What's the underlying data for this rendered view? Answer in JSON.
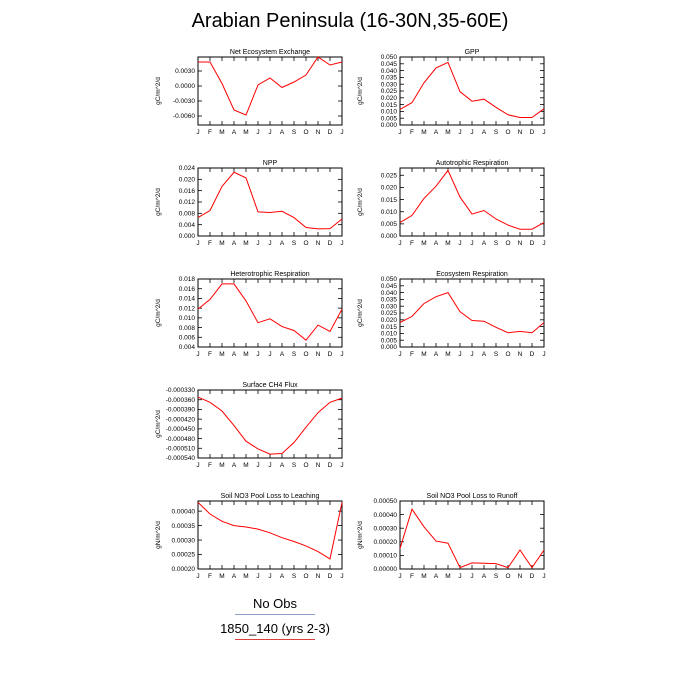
{
  "title": "Arabian Peninsula (16-30N,35-60E)",
  "legend": [
    {
      "label": "No Obs",
      "color": "#8fa0c8"
    },
    {
      "label": "1850_140 (yrs 2-3)",
      "color": "#e03c3c"
    }
  ],
  "series_color": "#ff0000",
  "chart_data": [
    {
      "type": "line",
      "title": "Net Ecosystem Exchange",
      "ylabel": "gC/m^2/d",
      "x": [
        "J",
        "F",
        "M",
        "A",
        "M",
        "J",
        "J",
        "A",
        "S",
        "O",
        "N",
        "D",
        "J"
      ],
      "ylim": [
        -0.0078,
        0.0058
      ],
      "yticks": [
        "0.0030",
        "0.0000",
        "-0.0030",
        "-0.0060"
      ],
      "ytick_values": [
        0.003,
        0.0,
        -0.003,
        -0.006
      ],
      "series": [
        {
          "values": [
            0.0048,
            0.0048,
            0.0005,
            -0.0048,
            -0.0058,
            0.0002,
            0.0016,
            -0.0003,
            0.0008,
            0.0022,
            0.0058,
            0.0042,
            0.0048
          ]
        }
      ]
    },
    {
      "type": "line",
      "title": "GPP",
      "ylabel": "gC/m^2/d",
      "x": [
        "J",
        "F",
        "M",
        "A",
        "M",
        "J",
        "J",
        "A",
        "S",
        "O",
        "N",
        "D",
        "J"
      ],
      "ylim": [
        0,
        0.05
      ],
      "yticks": [
        "0.050",
        "0.045",
        "0.040",
        "0.035",
        "0.030",
        "0.025",
        "0.020",
        "0.015",
        "0.010",
        "0.005",
        "0.000"
      ],
      "ytick_values": [
        0.05,
        0.045,
        0.04,
        0.035,
        0.03,
        0.025,
        0.02,
        0.015,
        0.01,
        0.005,
        0.0
      ],
      "series": [
        {
          "values": [
            0.0115,
            0.0165,
            0.031,
            0.042,
            0.046,
            0.0245,
            0.0175,
            0.019,
            0.013,
            0.0075,
            0.0055,
            0.0055,
            0.012
          ]
        }
      ]
    },
    {
      "type": "line",
      "title": "NPP",
      "ylabel": "gC/m^2/d",
      "x": [
        "J",
        "F",
        "M",
        "A",
        "M",
        "J",
        "J",
        "A",
        "S",
        "O",
        "N",
        "D",
        "J"
      ],
      "ylim": [
        0,
        0.024
      ],
      "yticks": [
        "0.024",
        "0.020",
        "0.016",
        "0.012",
        "0.008",
        "0.004",
        "0.000"
      ],
      "ytick_values": [
        0.024,
        0.02,
        0.016,
        0.012,
        0.008,
        0.004,
        0.0
      ],
      "series": [
        {
          "values": [
            0.0065,
            0.009,
            0.0175,
            0.0225,
            0.0205,
            0.0085,
            0.0083,
            0.0087,
            0.0065,
            0.003,
            0.0025,
            0.0026,
            0.006
          ]
        }
      ]
    },
    {
      "type": "line",
      "title": "Autotrophic Respiration",
      "ylabel": "gC/m^2/d",
      "x": [
        "J",
        "F",
        "M",
        "A",
        "M",
        "J",
        "J",
        "A",
        "S",
        "O",
        "N",
        "D",
        "J"
      ],
      "ylim": [
        0,
        0.028
      ],
      "yticks": [
        "0.025",
        "0.020",
        "0.015",
        "0.010",
        "0.005",
        "0.000"
      ],
      "ytick_values": [
        0.025,
        0.02,
        0.015,
        0.01,
        0.005,
        0.0
      ],
      "series": [
        {
          "values": [
            0.0055,
            0.0085,
            0.0155,
            0.0205,
            0.027,
            0.016,
            0.009,
            0.0105,
            0.007,
            0.0045,
            0.0028,
            0.0028,
            0.0055
          ]
        }
      ]
    },
    {
      "type": "line",
      "title": "Heterotrophic Respiration",
      "ylabel": "gC/m^2/d",
      "x": [
        "J",
        "F",
        "M",
        "A",
        "M",
        "J",
        "J",
        "A",
        "S",
        "O",
        "N",
        "D",
        "J"
      ],
      "ylim": [
        0.004,
        0.018
      ],
      "yticks": [
        "0.018",
        "0.016",
        "0.014",
        "0.012",
        "0.010",
        "0.008",
        "0.006",
        "0.004"
      ],
      "ytick_values": [
        0.018,
        0.016,
        0.014,
        0.012,
        0.01,
        0.008,
        0.006,
        0.004
      ],
      "series": [
        {
          "values": [
            0.0118,
            0.0138,
            0.017,
            0.017,
            0.0135,
            0.009,
            0.0098,
            0.0082,
            0.0074,
            0.0054,
            0.0085,
            0.0072,
            0.0118
          ]
        }
      ]
    },
    {
      "type": "line",
      "title": "Ecosystem Respiration",
      "ylabel": "gC/m^2/d",
      "x": [
        "J",
        "F",
        "M",
        "A",
        "M",
        "J",
        "J",
        "A",
        "S",
        "O",
        "N",
        "D",
        "J"
      ],
      "ylim": [
        0,
        0.05
      ],
      "yticks": [
        "0.050",
        "0.045",
        "0.040",
        "0.035",
        "0.030",
        "0.025",
        "0.020",
        "0.015",
        "0.010",
        "0.005",
        "0.000"
      ],
      "ytick_values": [
        0.05,
        0.045,
        0.04,
        0.035,
        0.03,
        0.025,
        0.02,
        0.015,
        0.01,
        0.005,
        0.0
      ],
      "series": [
        {
          "values": [
            0.018,
            0.0225,
            0.032,
            0.037,
            0.04,
            0.026,
            0.0195,
            0.019,
            0.0145,
            0.0105,
            0.0115,
            0.0105,
            0.018
          ]
        }
      ]
    },
    {
      "type": "line",
      "title": "Surface CH4 Flux",
      "ylabel": "gC/m^2/d",
      "x": [
        "J",
        "F",
        "M",
        "A",
        "M",
        "J",
        "J",
        "A",
        "S",
        "O",
        "N",
        "D",
        "J"
      ],
      "ylim": [
        -0.00054,
        -0.00033
      ],
      "yticks": [
        "-0.000330",
        "-0.000360",
        "-0.000390",
        "-0.000420",
        "-0.000450",
        "-0.000480",
        "-0.000510",
        "-0.000540"
      ],
      "ytick_values": [
        -0.00033,
        -0.00036,
        -0.00039,
        -0.00042,
        -0.00045,
        -0.00048,
        -0.00051,
        -0.00054
      ],
      "series": [
        {
          "values": [
            -0.000352,
            -0.000368,
            -0.000395,
            -0.00044,
            -0.000488,
            -0.000512,
            -0.000528,
            -0.000526,
            -0.000492,
            -0.000445,
            -0.0004,
            -0.000368,
            -0.000355
          ]
        }
      ]
    },
    {
      "type": "line",
      "title": "Soil NO3 Pool Loss to Leaching",
      "ylabel": "gN/m^2/d",
      "x": [
        "J",
        "F",
        "M",
        "A",
        "M",
        "J",
        "J",
        "A",
        "S",
        "O",
        "N",
        "D",
        "J"
      ],
      "ylim": [
        0.0002,
        0.000435
      ],
      "yticks": [
        "0.00040",
        "0.00035",
        "0.00030",
        "0.00025",
        "0.00020"
      ],
      "ytick_values": [
        0.0004,
        0.00035,
        0.0003,
        0.00025,
        0.0002
      ],
      "series": [
        {
          "values": [
            0.00043,
            0.00039,
            0.000365,
            0.00035,
            0.000345,
            0.000338,
            0.000325,
            0.000308,
            0.000295,
            0.00028,
            0.00026,
            0.000235,
            0.00043
          ]
        }
      ]
    },
    {
      "type": "line",
      "title": "Soil NO3 Pool Loss to Runoff",
      "ylabel": "gN/m^2/d",
      "x": [
        "J",
        "F",
        "M",
        "A",
        "M",
        "J",
        "J",
        "A",
        "S",
        "O",
        "N",
        "D",
        "J"
      ],
      "ylim": [
        0,
        0.0005
      ],
      "yticks": [
        "0.00050",
        "0.00040",
        "0.00030",
        "0.00020",
        "0.00010",
        "0.00000"
      ],
      "ytick_values": [
        0.0005,
        0.0004,
        0.0003,
        0.0002,
        0.0001,
        0.0
      ],
      "series": [
        {
          "values": [
            0.00015,
            0.00044,
            0.00031,
            0.000205,
            0.00019,
            1e-05,
            4.5e-05,
            4.2e-05,
            4e-05,
            1e-05,
            0.00014,
            1e-05,
            0.00014
          ]
        }
      ]
    }
  ]
}
